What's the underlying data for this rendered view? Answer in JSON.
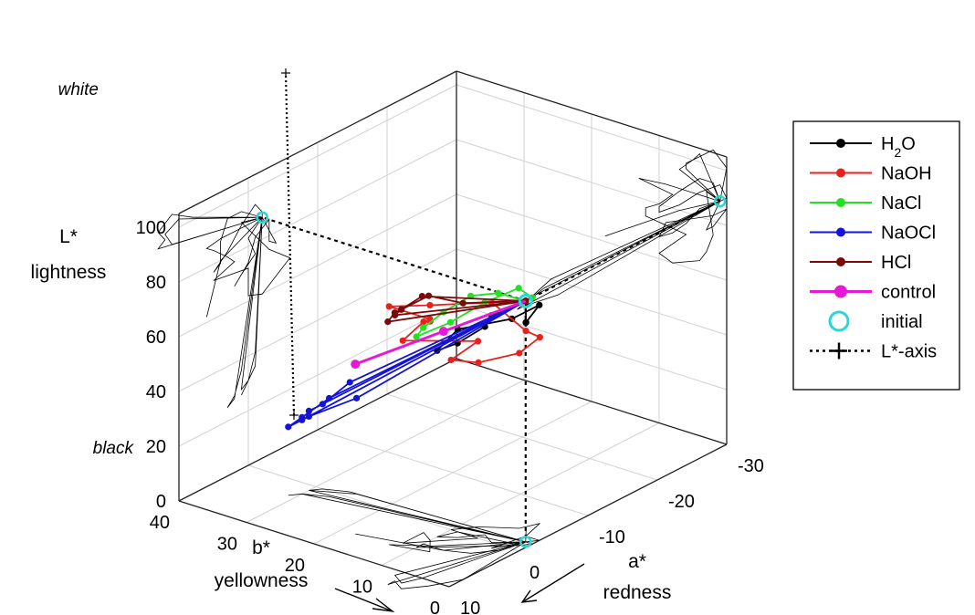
{
  "chart_data": {
    "type": "line",
    "subtype": "3d-trajectory",
    "axes": {
      "L": {
        "title_line1": "L*",
        "title_line2": "lightness",
        "ticks": [
          "0",
          "20",
          "40",
          "60",
          "80",
          "100"
        ],
        "range": [
          0,
          105
        ],
        "top_label": "white",
        "bottom_label": "black"
      },
      "b": {
        "title_line1": "b*",
        "title_line2": "yellowness",
        "ticks": [
          "0",
          "10",
          "20",
          "30",
          "40"
        ],
        "range": [
          0,
          40
        ]
      },
      "a": {
        "title_line1": "a*",
        "title_line2": "redness",
        "ticks": [
          "-30",
          "-20",
          "-10",
          "0",
          "10"
        ],
        "range": [
          -30,
          10
        ]
      }
    },
    "grid": true,
    "legend": {
      "position": "right",
      "entries": [
        {
          "key": "h2o",
          "label": "H",
          "sub": "2",
          "suffix": "O",
          "color": "#000000",
          "marker": "dot"
        },
        {
          "key": "naoh",
          "label": "NaOH",
          "color": "#e8211d",
          "marker": "dot"
        },
        {
          "key": "nacl",
          "label": "NaCl",
          "color": "#22e022",
          "marker": "dot"
        },
        {
          "key": "naocl",
          "label": "NaOCl",
          "color": "#1414d8",
          "marker": "dot"
        },
        {
          "key": "hcl",
          "label": "HCl",
          "color": "#7a0a0a",
          "marker": "dot"
        },
        {
          "key": "control",
          "label": "control",
          "color": "#e619d6",
          "marker": "bigdot"
        },
        {
          "key": "initial",
          "label": "initial",
          "color": "#2ad6d6",
          "marker": "ring"
        },
        {
          "key": "laxis",
          "label": "L*-axis",
          "color": "#000000",
          "marker": "plus"
        }
      ]
    },
    "initial_point": {
      "a": -2,
      "b": 1,
      "L": 88
    },
    "series": [
      {
        "name": "H2O",
        "color": "#000000",
        "points": [
          {
            "a": -2,
            "b": 1,
            "L": 88
          },
          {
            "a": 0,
            "b": 4,
            "L": 83
          },
          {
            "a": -1,
            "b": 6,
            "L": 76
          },
          {
            "a": 1,
            "b": 8,
            "L": 71
          },
          {
            "a": 2,
            "b": 10,
            "L": 68
          },
          {
            "a": 0,
            "b": 9,
            "L": 74
          },
          {
            "a": -1,
            "b": 2,
            "L": 82
          },
          {
            "a": -3,
            "b": 0,
            "L": 86
          },
          {
            "a": -3,
            "b": 2,
            "L": 78
          },
          {
            "a": -4,
            "b": 3,
            "L": 76
          },
          {
            "a": -2,
            "b": 1,
            "L": 88
          }
        ]
      },
      {
        "name": "NaOH",
        "color": "#e8211d",
        "points": [
          {
            "a": -2,
            "b": 1,
            "L": 88
          },
          {
            "a": 4,
            "b": 9,
            "L": 88
          },
          {
            "a": 6,
            "b": 13,
            "L": 87
          },
          {
            "a": 5,
            "b": 8,
            "L": 85
          },
          {
            "a": 3,
            "b": 10,
            "L": 80
          },
          {
            "a": 2,
            "b": 12,
            "L": 77
          },
          {
            "a": 5,
            "b": 12,
            "L": 74
          },
          {
            "a": 0,
            "b": 6,
            "L": 72
          },
          {
            "a": 0,
            "b": 10,
            "L": 62
          },
          {
            "a": -2,
            "b": 8,
            "L": 60
          },
          {
            "a": -4,
            "b": 4,
            "L": 64
          },
          {
            "a": -6,
            "b": 3,
            "L": 68
          },
          {
            "a": -3,
            "b": 2,
            "L": 75
          },
          {
            "a": 1,
            "b": 3,
            "L": 90
          },
          {
            "a": -2,
            "b": 1,
            "L": 88
          }
        ]
      },
      {
        "name": "NaCl",
        "color": "#22e022",
        "points": [
          {
            "a": -2,
            "b": 1,
            "L": 88
          },
          {
            "a": 1,
            "b": 2,
            "L": 94
          },
          {
            "a": 3,
            "b": 4,
            "L": 94
          },
          {
            "a": 4,
            "b": 7,
            "L": 87
          },
          {
            "a": 4,
            "b": 10,
            "L": 79
          },
          {
            "a": 5,
            "b": 10,
            "L": 77
          },
          {
            "a": 3,
            "b": 7,
            "L": 82
          },
          {
            "a": 1,
            "b": 4,
            "L": 89
          },
          {
            "a": -1,
            "b": 1,
            "L": 94
          },
          {
            "a": -2,
            "b": 0,
            "L": 90
          },
          {
            "a": -2,
            "b": 1,
            "L": 88
          }
        ]
      },
      {
        "name": "NaOCl",
        "color": "#1414d8",
        "points": [
          {
            "a": -2,
            "b": 1,
            "L": 88
          },
          {
            "a": 1,
            "b": 27,
            "L": 36
          },
          {
            "a": 2,
            "b": 30,
            "L": 28
          },
          {
            "a": 3,
            "b": 31,
            "L": 25
          },
          {
            "a": 2,
            "b": 30,
            "L": 27
          },
          {
            "a": -2,
            "b": 1,
            "L": 88
          },
          {
            "a": -1,
            "b": 26,
            "L": 40
          },
          {
            "a": 0,
            "b": 29,
            "L": 31
          },
          {
            "a": 1,
            "b": 30,
            "L": 29
          },
          {
            "a": -2,
            "b": 1,
            "L": 88
          },
          {
            "a": -1,
            "b": 25,
            "L": 35
          },
          {
            "a": 1,
            "b": 30,
            "L": 27
          }
        ]
      },
      {
        "name": "HCl",
        "color": "#7a0a0a",
        "points": [
          {
            "a": -2,
            "b": 1,
            "L": 88
          },
          {
            "a": 8,
            "b": 0,
            "L": 101
          },
          {
            "a": 11,
            "b": 2,
            "L": 106
          },
          {
            "a": 13,
            "b": 4,
            "L": 102
          },
          {
            "a": 12,
            "b": 6,
            "L": 98
          },
          {
            "a": 13,
            "b": 6,
            "L": 96
          },
          {
            "a": -2,
            "b": 1,
            "L": 88
          },
          {
            "a": 10,
            "b": 4,
            "L": 103
          },
          {
            "a": 12,
            "b": 5,
            "L": 100
          },
          {
            "a": 11,
            "b": 7,
            "L": 95
          },
          {
            "a": -2,
            "b": 1,
            "L": 88
          }
        ]
      },
      {
        "name": "control",
        "color": "#e619d6",
        "points": [
          {
            "a": -2,
            "b": 1,
            "L": 88
          },
          {
            "a": 4,
            "b": 7,
            "L": 80
          },
          {
            "a": 6,
            "b": 18,
            "L": 62
          }
        ]
      }
    ]
  }
}
